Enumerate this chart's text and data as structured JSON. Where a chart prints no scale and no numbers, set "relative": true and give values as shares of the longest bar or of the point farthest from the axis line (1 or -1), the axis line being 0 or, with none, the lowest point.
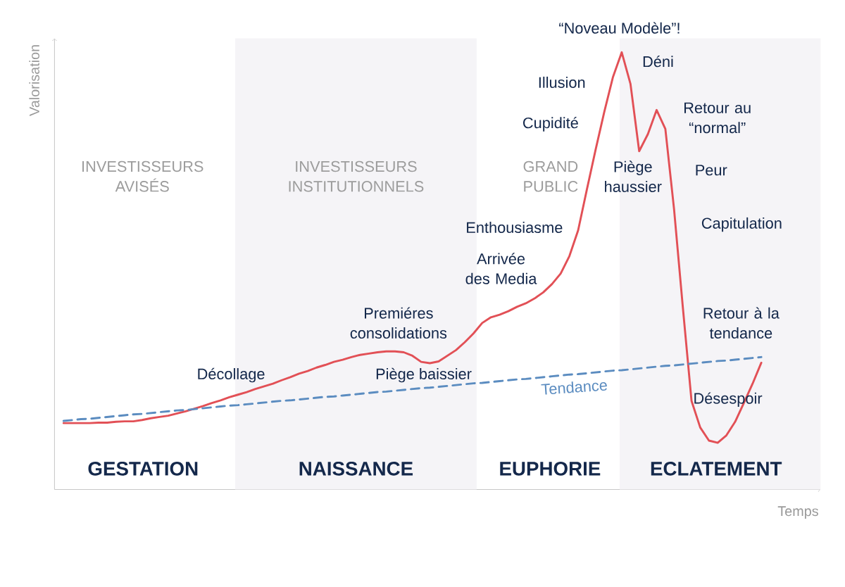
{
  "chart_data": {
    "type": "line",
    "relative": true,
    "tick_labels": false,
    "xlabel": "Temps",
    "ylabel": "Valorisation",
    "categories": [
      null,
      null,
      null,
      null,
      null,
      null,
      null,
      null,
      null,
      null,
      null,
      null,
      null,
      null,
      null,
      null,
      null,
      null,
      null,
      null,
      null,
      null,
      null,
      null,
      null,
      null,
      null,
      null,
      null,
      null,
      null,
      null,
      null,
      null,
      null,
      null,
      null,
      null,
      null,
      null,
      null,
      null,
      null,
      null,
      null,
      null,
      null,
      null,
      null,
      null,
      null,
      null,
      null,
      null,
      null,
      null,
      null,
      null,
      null,
      null,
      null,
      null,
      null,
      null,
      null,
      null,
      null,
      null,
      null,
      null,
      null,
      null,
      null,
      null,
      null,
      null,
      null,
      null,
      null,
      null,
      null
    ],
    "series": [
      {
        "color": "#e25056",
        "line_style": "solid",
        "values": [
          0.152,
          0.152,
          0.152,
          0.152,
          0.153,
          0.153,
          0.155,
          0.156,
          0.156,
          0.159,
          0.163,
          0.166,
          0.169,
          0.174,
          0.179,
          0.185,
          0.191,
          0.198,
          0.204,
          0.211,
          0.217,
          0.223,
          0.23,
          0.236,
          0.242,
          0.25,
          0.257,
          0.265,
          0.271,
          0.279,
          0.285,
          0.292,
          0.297,
          0.303,
          0.308,
          0.311,
          0.314,
          0.316,
          0.316,
          0.314,
          0.306,
          0.292,
          0.289,
          0.293,
          0.306,
          0.319,
          0.337,
          0.357,
          0.381,
          0.394,
          0.4,
          0.408,
          0.418,
          0.426,
          0.437,
          0.451,
          0.47,
          0.494,
          0.534,
          0.593,
          0.686,
          0.777,
          0.864,
          0.944,
          1,
          0.928,
          0.774,
          0.813,
          0.868,
          0.825,
          0.641,
          0.418,
          0.203,
          0.142,
          0.112,
          0.107,
          0.124,
          0.155,
          0.198,
          0.242,
          0.29
        ]
      },
      {
        "name": "Tendance",
        "color": "#5b8cc0",
        "line_style": "dashed",
        "values": [
          0.157,
          0.159,
          0.161,
          0.162,
          0.164,
          0.166,
          0.168,
          0.17,
          0.172,
          0.173,
          0.175,
          0.177,
          0.179,
          0.181,
          0.182,
          0.184,
          0.186,
          0.188,
          0.19,
          0.192,
          0.193,
          0.195,
          0.197,
          0.199,
          0.201,
          0.203,
          0.204,
          0.206,
          0.208,
          0.21,
          0.212,
          0.213,
          0.215,
          0.217,
          0.219,
          0.221,
          0.223,
          0.224,
          0.226,
          0.228,
          0.23,
          0.232,
          0.233,
          0.235,
          0.237,
          0.239,
          0.241,
          0.243,
          0.244,
          0.246,
          0.248,
          0.25,
          0.252,
          0.253,
          0.255,
          0.257,
          0.259,
          0.261,
          0.263,
          0.264,
          0.266,
          0.268,
          0.27,
          0.272,
          0.273,
          0.275,
          0.277,
          0.279,
          0.281,
          0.283,
          0.284,
          0.286,
          0.288,
          0.29,
          0.292,
          0.294,
          0.295,
          0.297,
          0.299,
          0.301,
          0.303
        ]
      }
    ],
    "annotations": [
      "INVESTISSEURS AVISÉS",
      "INVESTISSEURS INSTITUTIONNELS",
      "GRAND PUBLIC",
      "Décollage",
      "Premiéres consolidations",
      "Piège baissier",
      "Arrivée des Media",
      "Enthousiasme",
      "Cupidité",
      "Illusion",
      "“Noveau Modèle”!",
      "Déni",
      "Piège haussier",
      "Retour au “normal”",
      "Peur",
      "Capitulation",
      "Retour à la tendance",
      "Désespoir",
      "GESTATION",
      "NAISSANCE",
      "EUPHORIE",
      "ECLATEMENT"
    ]
  }
}
